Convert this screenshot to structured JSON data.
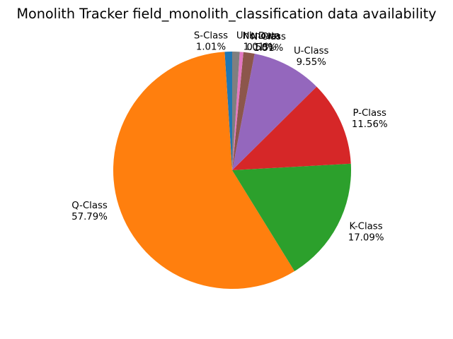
{
  "chart_data": {
    "type": "pie",
    "title": "Monolith Tracker field_monolith_classification data availability",
    "start_angle_deg": 90,
    "direction": "counterclockwise",
    "slices": [
      {
        "label": "S-Class",
        "percent": 1.01,
        "display": "1.01%",
        "color": "#1f77b4"
      },
      {
        "label": "Q-Class",
        "percent": 57.79,
        "display": "57.79%",
        "color": "#ff7f0e"
      },
      {
        "label": "K-Class",
        "percent": 17.09,
        "display": "17.09%",
        "color": "#2ca02c"
      },
      {
        "label": "P-Class",
        "percent": 11.56,
        "display": "11.56%",
        "color": "#d62728"
      },
      {
        "label": "U-Class",
        "percent": 9.55,
        "display": "9.55%",
        "color": "#9467bd"
      },
      {
        "label": "N-Class",
        "percent": 1.51,
        "display": "1.51%",
        "color": "#8c564b"
      },
      {
        "label": "No Data",
        "percent": 0.5,
        "display": "0.50%",
        "color": "#e377c2"
      },
      {
        "label": "Unknown",
        "percent": 1.01,
        "display": "1.01%",
        "color": "#7f7f7f"
      }
    ],
    "legend": "none"
  }
}
